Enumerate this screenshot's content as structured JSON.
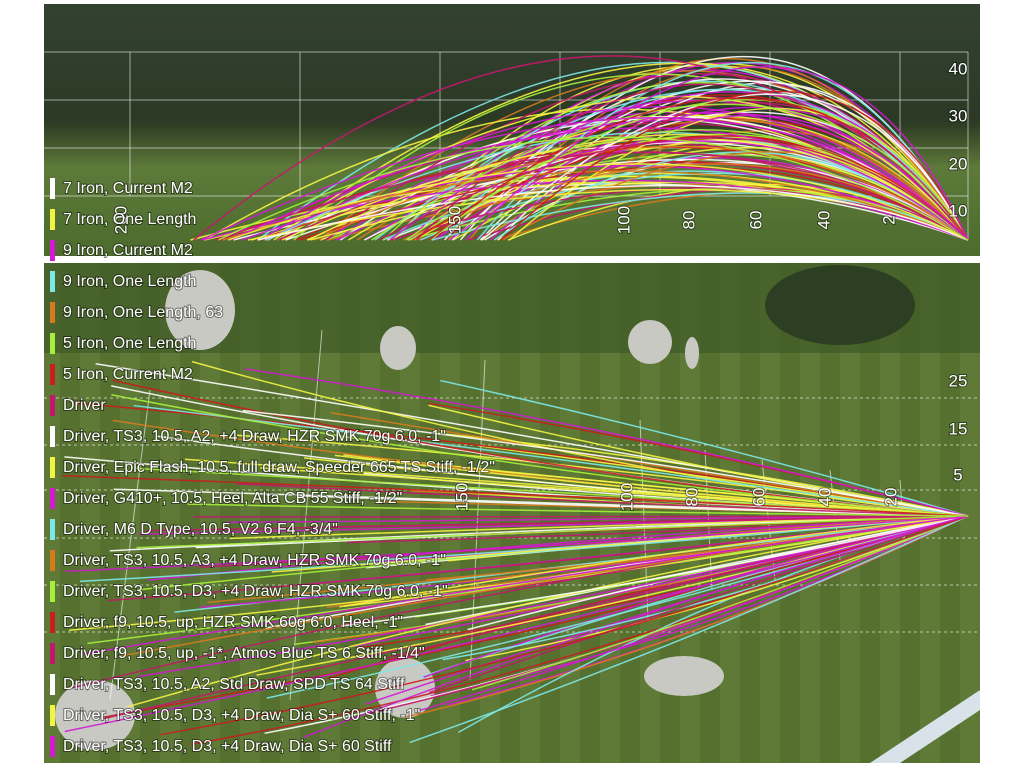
{
  "side_view": {
    "height_labels": [
      "40",
      "30",
      "20",
      "10"
    ],
    "distance_labels": [
      "200",
      "150",
      "100",
      "80",
      "60",
      "40",
      "2"
    ]
  },
  "top_view": {
    "offset_labels": [
      "25",
      "15",
      "5"
    ],
    "distance_labels": [
      "150",
      "100",
      "80",
      "60",
      "40",
      "20"
    ]
  },
  "legend": [
    {
      "label": "7 Iron, Current M2",
      "color": "#ffffff"
    },
    {
      "label": "7 Iron, One Length",
      "color": "#f4f442"
    },
    {
      "label": "9 Iron, Current M2",
      "color": "#d11ad1"
    },
    {
      "label": "9 Iron, One Length",
      "color": "#7de8e8"
    },
    {
      "label": "9 Iron, One Length, 63",
      "color": "#d77a1e"
    },
    {
      "label": "5 Iron, One Length",
      "color": "#a6f03c"
    },
    {
      "label": "5 Iron, Current M2",
      "color": "#c81e1e"
    },
    {
      "label": "Driver",
      "color": "#c2186b"
    },
    {
      "label": "Driver, TS3, 10.5, A2, +4 Draw, HZR SMK 70g 6.0, -1\"",
      "color": "#ffffff"
    },
    {
      "label": "Driver, Epic Flash, 10.5, full draw, Speeder 665 TS Stiff, -1/2\"",
      "color": "#f4f442"
    },
    {
      "label": "Driver, G410+, 10.5, Heel, Alta CB 55 Stiff, -1/2\"",
      "color": "#d11ad1"
    },
    {
      "label": "Driver, M6 D Type, 10.5, V2 6 F4, -3/4\"",
      "color": "#7de8e8"
    },
    {
      "label": "Driver, TS3, 10.5, A3, +4 Draw, HZR SMK 70g 6.0, -1\"",
      "color": "#d77a1e"
    },
    {
      "label": "Driver, TS3, 10.5, D3, +4 Draw, HZR SMK 70g 6.0, -1\"",
      "color": "#a6f03c"
    },
    {
      "label": "Driver, f9, 10.5, up, HZR SMK 60g 6.0, Heel, -1\"",
      "color": "#c81e1e"
    },
    {
      "label": "Driver, f9, 10.5, up, -1*, Atmos Blue TS 6 Stiff, -1/4\"",
      "color": "#c2186b"
    },
    {
      "label": "Driver, TS3, 10.5, A2, Std Draw, SPD TS 64 Stiff",
      "color": "#ffffff"
    },
    {
      "label": "Driver, TS3, 10.5, D3, +4 Draw, Dia S+ 60 Stiff, -1\"",
      "color": "#f4f442"
    },
    {
      "label": "Driver, TS3, 10.5, D3, +4 Draw, Dia S+ 60 Stiff",
      "color": "#d11ad1"
    }
  ]
}
